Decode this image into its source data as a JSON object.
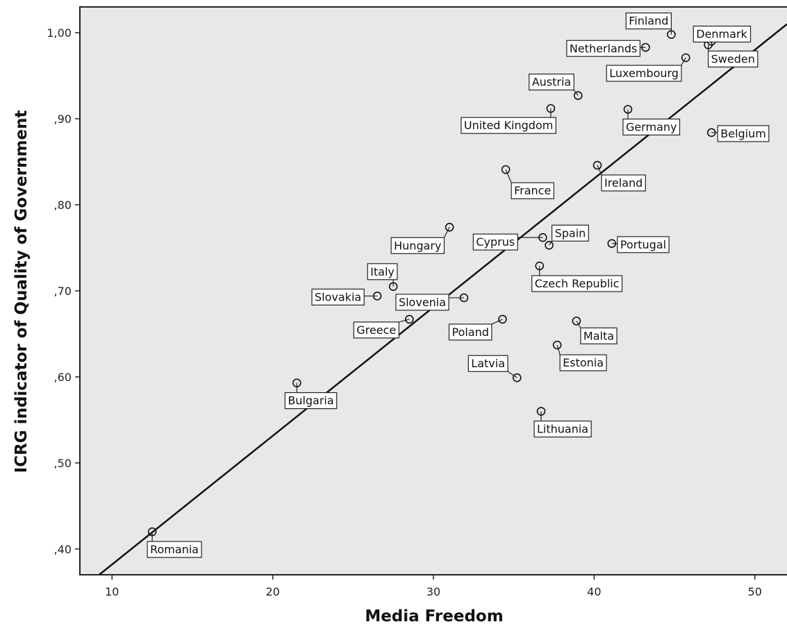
{
  "chart_data": {
    "type": "scatter",
    "title": "",
    "xlabel": "Media Freedom",
    "ylabel": "ICRG indicator of Quality of Government",
    "xlim": [
      8,
      52
    ],
    "ylim": [
      0.37,
      1.03
    ],
    "x_ticks": [
      10,
      20,
      30,
      40,
      50
    ],
    "x_tick_labels": [
      "10",
      "20",
      "30",
      "40",
      "50"
    ],
    "y_ticks": [
      0.4,
      0.5,
      0.6,
      0.7,
      0.8,
      0.9,
      1.0
    ],
    "y_tick_labels": [
      ",40",
      ",50",
      ",60",
      ",70",
      ",80",
      ",90",
      "1,00"
    ],
    "grid": false,
    "background_color": "#e8e8e8",
    "marker": "open-circle",
    "fit_line": {
      "x": [
        9.2,
        52
      ],
      "y": [
        0.37,
        1.01
      ]
    },
    "points": [
      {
        "label": "Finland",
        "x": 44.8,
        "y": 0.998
      },
      {
        "label": "Denmark",
        "x": 47.3,
        "y": 0.99
      },
      {
        "label": "Sweden",
        "x": 47.1,
        "y": 0.986
      },
      {
        "label": "Netherlands",
        "x": 43.2,
        "y": 0.983
      },
      {
        "label": "Luxembourg",
        "x": 45.7,
        "y": 0.971
      },
      {
        "label": "Austria",
        "x": 39.0,
        "y": 0.927
      },
      {
        "label": "United Kingdom",
        "x": 37.3,
        "y": 0.912
      },
      {
        "label": "Germany",
        "x": 42.1,
        "y": 0.911
      },
      {
        "label": "Belgium",
        "x": 47.3,
        "y": 0.884
      },
      {
        "label": "Ireland",
        "x": 40.2,
        "y": 0.846
      },
      {
        "label": "France",
        "x": 34.5,
        "y": 0.841
      },
      {
        "label": "Hungary",
        "x": 31.0,
        "y": 0.774
      },
      {
        "label": "Cyprus",
        "x": 36.8,
        "y": 0.762
      },
      {
        "label": "Spain",
        "x": 37.2,
        "y": 0.753
      },
      {
        "label": "Portugal",
        "x": 41.1,
        "y": 0.755
      },
      {
        "label": "Czech Republic",
        "x": 36.6,
        "y": 0.729
      },
      {
        "label": "Italy",
        "x": 27.5,
        "y": 0.705
      },
      {
        "label": "Slovakia",
        "x": 26.5,
        "y": 0.694
      },
      {
        "label": "Slovenia",
        "x": 31.9,
        "y": 0.692
      },
      {
        "label": "Greece",
        "x": 28.5,
        "y": 0.667
      },
      {
        "label": "Poland",
        "x": 34.3,
        "y": 0.667
      },
      {
        "label": "Malta",
        "x": 38.9,
        "y": 0.665
      },
      {
        "label": "Estonia",
        "x": 37.7,
        "y": 0.637
      },
      {
        "label": "Latvia",
        "x": 35.2,
        "y": 0.599
      },
      {
        "label": "Bulgaria",
        "x": 21.5,
        "y": 0.593
      },
      {
        "label": "Lithuania",
        "x": 36.7,
        "y": 0.56
      },
      {
        "label": "Romania",
        "x": 12.5,
        "y": 0.42
      }
    ]
  }
}
